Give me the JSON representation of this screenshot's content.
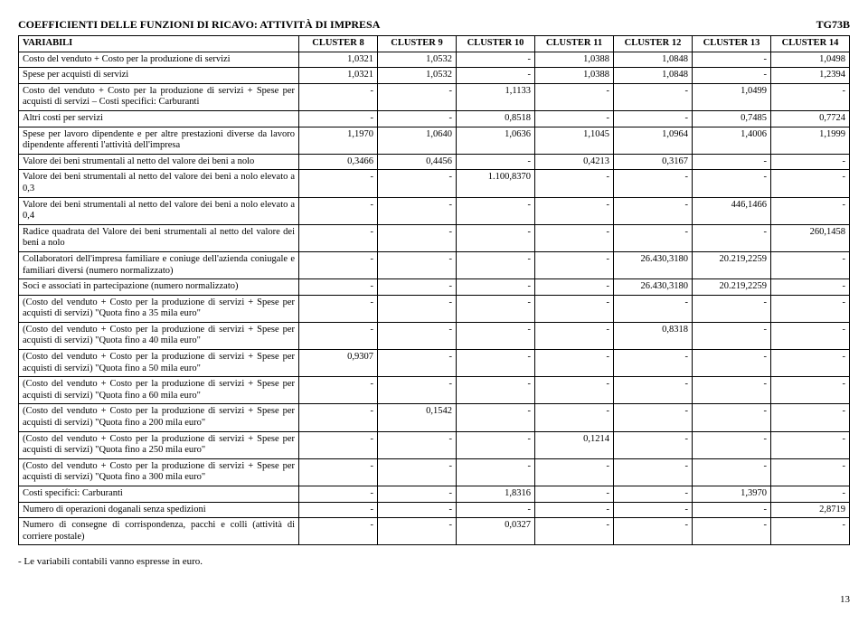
{
  "header": {
    "title": "COEFFICIENTI DELLE FUNZIONI DI RICAVO: ATTIVITÀ DI IMPRESA",
    "code": "TG73B"
  },
  "columns": [
    "VARIABILI",
    "CLUSTER 8",
    "CLUSTER 9",
    "CLUSTER 10",
    "CLUSTER 11",
    "CLUSTER 12",
    "CLUSTER 13",
    "CLUSTER 14"
  ],
  "rows": [
    {
      "label": "Costo del venduto + Costo per la produzione di servizi",
      "vals": [
        "1,0321",
        "1,0532",
        "-",
        "1,0388",
        "1,0848",
        "-",
        "1,0498"
      ]
    },
    {
      "label": "Spese per acquisti di servizi",
      "vals": [
        "1,0321",
        "1,0532",
        "-",
        "1,0388",
        "1,0848",
        "-",
        "1,2394"
      ]
    },
    {
      "label": "Costo del venduto + Costo per la produzione di servizi + Spese per acquisti di servizi – Costi specifici: Carburanti",
      "vals": [
        "-",
        "-",
        "1,1133",
        "-",
        "-",
        "1,0499",
        "-"
      ]
    },
    {
      "label": "Altri costi per servizi",
      "vals": [
        "-",
        "-",
        "0,8518",
        "-",
        "-",
        "0,7485",
        "0,7724"
      ]
    },
    {
      "label": "Spese per lavoro dipendente e per altre prestazioni diverse da lavoro dipendente afferenti l'attività dell'impresa",
      "vals": [
        "1,1970",
        "1,0640",
        "1,0636",
        "1,1045",
        "1,0964",
        "1,4006",
        "1,1999"
      ]
    },
    {
      "label": "Valore dei beni strumentali al netto del valore dei beni a nolo",
      "vals": [
        "0,3466",
        "0,4456",
        "-",
        "0,4213",
        "0,3167",
        "-",
        "-"
      ]
    },
    {
      "label": "Valore dei beni strumentali al netto del valore dei beni a nolo elevato a 0,3",
      "vals": [
        "-",
        "-",
        "1.100,8370",
        "-",
        "-",
        "-",
        "-"
      ]
    },
    {
      "label": "Valore dei beni strumentali al netto del valore dei beni a nolo elevato a 0,4",
      "vals": [
        "-",
        "-",
        "-",
        "-",
        "-",
        "446,1466",
        "-"
      ]
    },
    {
      "label": "Radice quadrata del Valore dei beni strumentali al netto del valore dei beni a nolo",
      "vals": [
        "-",
        "-",
        "-",
        "-",
        "-",
        "-",
        "260,1458"
      ]
    },
    {
      "label": "Collaboratori dell'impresa familiare e coniuge dell'azienda coniugale e familiari diversi (numero normalizzato)",
      "vals": [
        "-",
        "-",
        "-",
        "-",
        "26.430,3180",
        "20.219,2259",
        "-"
      ]
    },
    {
      "label": "Soci e associati in partecipazione (numero normalizzato)",
      "vals": [
        "-",
        "-",
        "-",
        "-",
        "26.430,3180",
        "20.219,2259",
        "-"
      ]
    },
    {
      "label": "(Costo del venduto + Costo per la produzione di servizi + Spese per acquisti di servizi) \"Quota fino a 35 mila euro\"",
      "vals": [
        "-",
        "-",
        "-",
        "-",
        "-",
        "-",
        "-"
      ]
    },
    {
      "label": "(Costo del venduto + Costo per la produzione di servizi + Spese per acquisti di servizi) \"Quota fino a 40 mila euro\"",
      "vals": [
        "-",
        "-",
        "-",
        "-",
        "0,8318",
        "-",
        "-"
      ]
    },
    {
      "label": "(Costo del venduto + Costo per la produzione di servizi + Spese per acquisti di servizi) \"Quota fino a 50 mila euro\"",
      "vals": [
        "0,9307",
        "-",
        "-",
        "-",
        "-",
        "-",
        "-"
      ]
    },
    {
      "label": "(Costo del venduto + Costo per la produzione di servizi + Spese per acquisti di servizi) \"Quota fino a 60 mila euro\"",
      "vals": [
        "-",
        "-",
        "-",
        "-",
        "-",
        "-",
        "-"
      ]
    },
    {
      "label": "(Costo del venduto + Costo per la produzione di servizi + Spese per acquisti di servizi) \"Quota fino a 200 mila euro\"",
      "vals": [
        "-",
        "0,1542",
        "-",
        "-",
        "-",
        "-",
        "-"
      ]
    },
    {
      "label": "(Costo del venduto + Costo per la produzione di servizi + Spese per acquisti di servizi) \"Quota fino a 250 mila euro\"",
      "vals": [
        "-",
        "-",
        "-",
        "0,1214",
        "-",
        "-",
        "-"
      ]
    },
    {
      "label": "(Costo del venduto + Costo per la produzione di servizi + Spese per acquisti di servizi) \"Quota fino a 300 mila euro\"",
      "vals": [
        "-",
        "-",
        "-",
        "-",
        "-",
        "-",
        "-"
      ]
    },
    {
      "label": "Costi specifici: Carburanti",
      "vals": [
        "-",
        "-",
        "1,8316",
        "-",
        "-",
        "1,3970",
        "-"
      ]
    },
    {
      "label": "Numero di operazioni doganali senza spedizioni",
      "vals": [
        "-",
        "-",
        "-",
        "-",
        "-",
        "-",
        "2,8719"
      ]
    },
    {
      "label": "Numero di consegne di corrispondenza, pacchi e colli (attività di corriere postale)",
      "vals": [
        "-",
        "-",
        "0,0327",
        "-",
        "-",
        "-",
        "-"
      ]
    }
  ],
  "footnote": "- Le variabili contabili vanno espresse in euro.",
  "page": "13"
}
